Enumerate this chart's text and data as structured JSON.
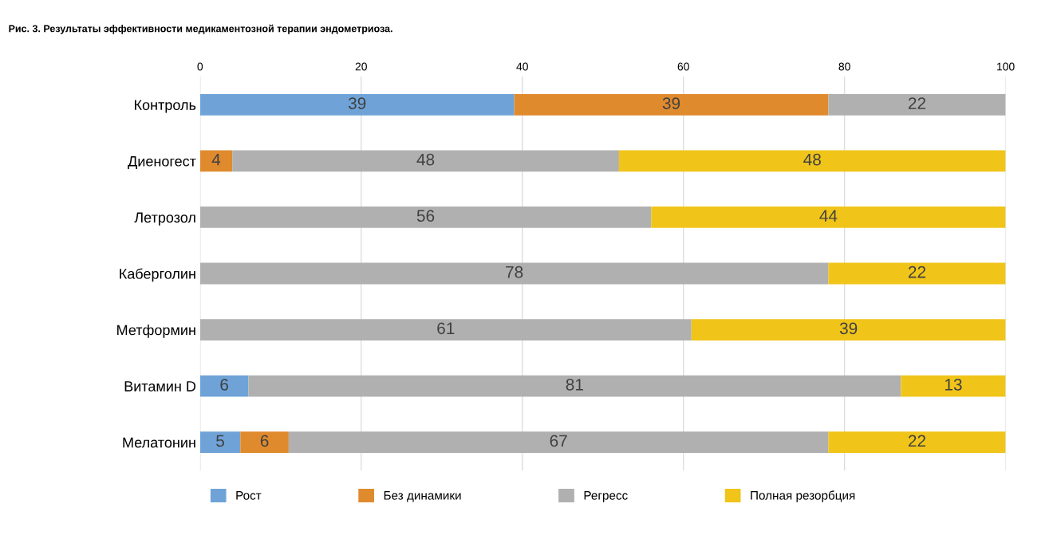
{
  "chart_data": {
    "type": "bar",
    "title": "Рис. 3. Результаты эффективности медикаментозной терапии эндометриоза.",
    "orientation": "horizontal",
    "stacked": true,
    "categories": [
      "Контроль",
      "Диеногест",
      "Летрозол",
      "Каберголин",
      "Метформин",
      "Витамин D",
      "Мелатонин"
    ],
    "series": [
      {
        "name": "Рост",
        "color": "#6fa3d8",
        "values": [
          39,
          null,
          null,
          null,
          null,
          6,
          5
        ]
      },
      {
        "name": "Без динамики",
        "color": "#e08a2e",
        "values": [
          39,
          4,
          null,
          null,
          null,
          null,
          6
        ]
      },
      {
        "name": "Регресс",
        "color": "#b0b0b0",
        "values": [
          22,
          48,
          56,
          78,
          61,
          81,
          67
        ]
      },
      {
        "name": "Полная резорбция",
        "color": "#f0c419",
        "values": [
          null,
          48,
          44,
          22,
          39,
          13,
          22
        ]
      }
    ],
    "xlim": [
      0,
      100
    ],
    "xticks": [
      0,
      20,
      40,
      60,
      80,
      100
    ],
    "grid": "x",
    "legend": "bottom",
    "data_labels": true
  }
}
